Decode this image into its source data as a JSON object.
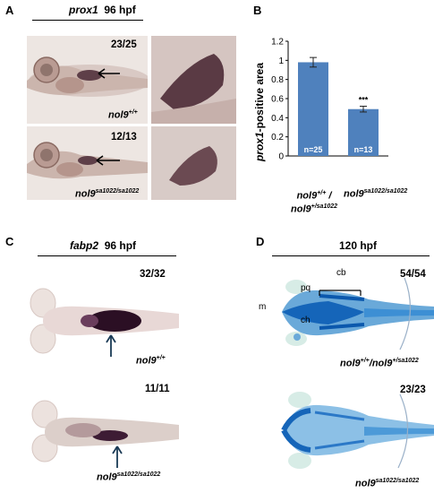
{
  "panels": {
    "A": {
      "letter": "A",
      "gene": "prox1",
      "stage": "96 hpf",
      "rows": [
        {
          "count": "23/25",
          "genotype_base": "nol9",
          "genotype_sup": "+/+"
        },
        {
          "count": "12/13",
          "genotype_base": "nol9",
          "genotype_sup": "sa1022/sa1022"
        }
      ]
    },
    "B": {
      "letter": "B",
      "ylabel_gene": "prox1",
      "ylabel_rest": "-positive area",
      "x_label_1_line1_base": "nol9",
      "x_label_1_line1_sup": "+/+",
      "x_label_1_line1_sep": " /",
      "x_label_1_line2_base": "nol9",
      "x_label_1_line2_sup": "+/sa1022",
      "x_label_2_base": "nol9",
      "x_label_2_sup": "sa1022/sa1022",
      "significance": "***"
    },
    "C": {
      "letter": "C",
      "gene": "fabp2",
      "stage": "96 hpf",
      "rows": [
        {
          "count": "32/32",
          "genotype_base": "nol9",
          "genotype_sup": "+/+"
        },
        {
          "count": "11/11",
          "genotype_base": "nol9",
          "genotype_sup": "sa1022/sa1022"
        }
      ]
    },
    "D": {
      "letter": "D",
      "stage": "120 hpf",
      "labels": {
        "m": "m",
        "pq": "pq",
        "cb": "cb",
        "ch": "ch"
      },
      "rows": [
        {
          "count": "54/54",
          "g1_base": "nol9",
          "g1_sup": "+/+",
          "sep": "/",
          "g2_base": "nol9",
          "g2_sup": "+/sa1022"
        },
        {
          "count": "23/23",
          "genotype_base": "nol9",
          "genotype_sup": "sa1022/sa1022"
        }
      ]
    }
  },
  "chart_data": {
    "type": "bar",
    "categories": [
      "nol9+/+ / nol9+/sa1022",
      "nol9sa1022/sa1022"
    ],
    "values": [
      0.98,
      0.49
    ],
    "errors": [
      0.05,
      0.03
    ],
    "bar_labels": [
      "n=25",
      "n=13"
    ],
    "ylabel": "prox1-positive area",
    "ylim": [
      0,
      1.2
    ],
    "yticks": [
      "0",
      "0.2",
      "0.4",
      "0.6",
      "0.8",
      "1",
      "1.2"
    ],
    "colors": {
      "bar": "#4f81bd",
      "error": "#222222"
    }
  }
}
